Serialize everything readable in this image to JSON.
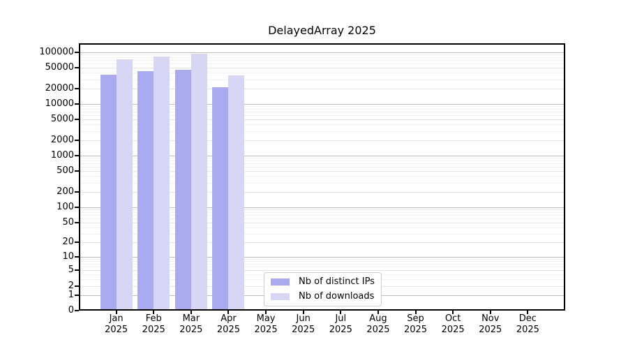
{
  "chart_data": {
    "type": "bar",
    "title": "DelayedArray 2025",
    "categories": [
      "Jan 2025",
      "Feb 2025",
      "Mar 2025",
      "Apr 2025",
      "May 2025",
      "Jun 2025",
      "Jul 2025",
      "Aug 2025",
      "Sep 2025",
      "Oct 2025",
      "Nov 2025",
      "Dec 2025"
    ],
    "series": [
      {
        "name": "Nb of distinct IPs",
        "color": "#aaaaee",
        "values": [
          37200,
          42700,
          46300,
          21000,
          0,
          0,
          0,
          0,
          0,
          0,
          0,
          0
        ]
      },
      {
        "name": "Nb of downloads",
        "color": "#d7d7f5",
        "values": [
          73500,
          83000,
          95000,
          36000,
          0,
          0,
          0,
          0,
          0,
          0,
          0,
          0
        ]
      }
    ],
    "yscale": "log1p",
    "yticks": [
      0,
      1,
      2,
      5,
      10,
      20,
      50,
      100,
      200,
      500,
      1000,
      2000,
      5000,
      10000,
      20000,
      50000,
      100000
    ],
    "ylim": [
      0,
      150000
    ],
    "xlabel": "",
    "ylabel": "",
    "grid": "horizontal",
    "legend_position": "lower-center"
  },
  "colors": {
    "background": "#ffffff",
    "axis": "#000000",
    "grid_power": "#bdbdbd",
    "grid_labeled": "#e4e4e4",
    "grid_minor": "#f1f1f1",
    "legend_border": "#cccccc",
    "text": "#000000"
  }
}
